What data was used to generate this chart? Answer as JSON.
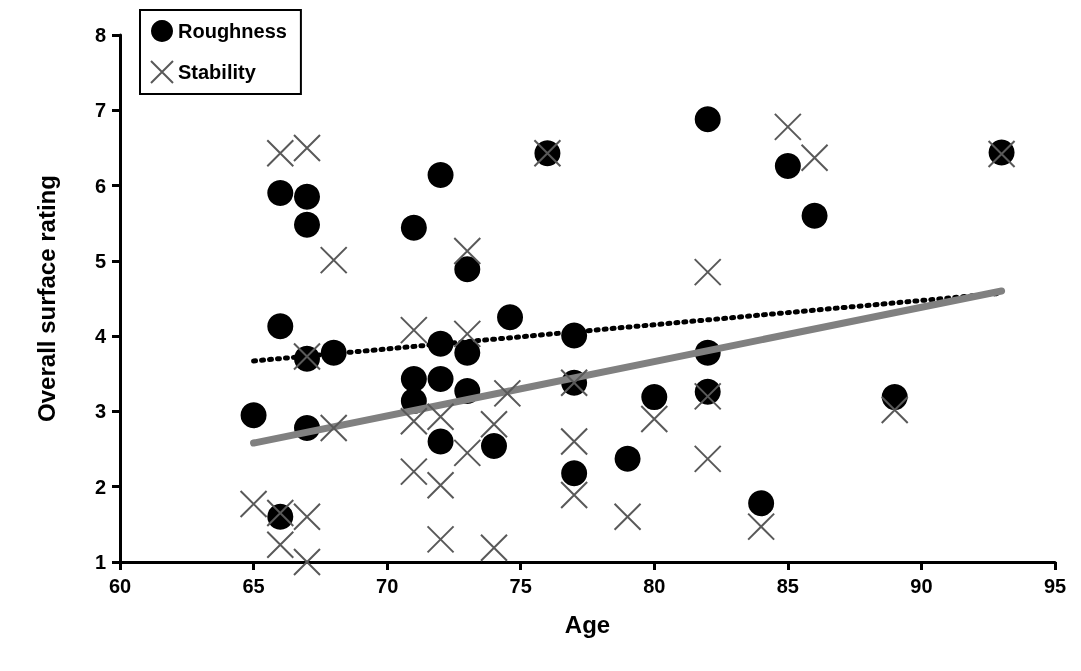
{
  "chart_data": {
    "type": "scatter",
    "xlabel": "Age",
    "ylabel": "Overall surface rating",
    "xlim": [
      60,
      95
    ],
    "xticks": [
      60,
      65,
      70,
      75,
      80,
      85,
      90,
      95
    ],
    "ylim": [
      1,
      8
    ],
    "yticks": [
      1,
      2,
      3,
      4,
      5,
      6,
      7,
      8
    ],
    "grid": false,
    "legend": "top left",
    "series": [
      {
        "name": "Roughness",
        "color": "#000000",
        "marker": "circle",
        "x": [
          66,
          67,
          67,
          72,
          71,
          73,
          66,
          67,
          68,
          72,
          73,
          65,
          67,
          71,
          71,
          72,
          73,
          72,
          74,
          66,
          76,
          82,
          85,
          74.6,
          77,
          82,
          77,
          80,
          82,
          77,
          79,
          84,
          86,
          93,
          89
        ],
        "values": [
          5.9,
          5.85,
          5.48,
          6.14,
          5.44,
          4.89,
          4.13,
          3.7,
          3.78,
          3.9,
          3.78,
          2.95,
          2.78,
          3.43,
          3.14,
          3.43,
          3.27,
          2.6,
          2.54,
          1.6,
          6.43,
          6.88,
          6.26,
          4.25,
          4.01,
          3.78,
          3.38,
          3.19,
          3.26,
          2.18,
          2.37,
          1.78,
          5.6,
          6.44,
          3.19
        ]
      },
      {
        "name": "Stability",
        "color": "#595959",
        "marker": "cross",
        "x": [
          66,
          67,
          68,
          73,
          71,
          73,
          67,
          65,
          66,
          66,
          67,
          67,
          68,
          71,
          71,
          72,
          72,
          72,
          73,
          74.5,
          74,
          77,
          77,
          77,
          80,
          82,
          82,
          79,
          84,
          74,
          85,
          82,
          76,
          86,
          93,
          89
        ],
        "values": [
          6.43,
          6.5,
          5.01,
          5.13,
          4.08,
          4.03,
          3.73,
          1.77,
          1.65,
          1.23,
          1.6,
          1.0,
          2.78,
          2.87,
          2.2,
          2.93,
          2.02,
          1.3,
          2.45,
          3.24,
          2.83,
          3.38,
          2.6,
          1.89,
          2.9,
          3.2,
          2.37,
          1.6,
          1.47,
          1.19,
          6.78,
          4.85,
          6.43,
          6.37,
          6.42,
          3.02
        ]
      },
      {
        "type": "line",
        "color": "#000000",
        "line_style": "dotted",
        "marker": "none",
        "x": [
          65,
          93
        ],
        "values": [
          3.67,
          4.57
        ]
      },
      {
        "type": "line",
        "color": "#808080",
        "line_style": "solid",
        "marker": "none",
        "x": [
          65,
          93
        ],
        "values": [
          2.58,
          4.6
        ]
      }
    ]
  }
}
